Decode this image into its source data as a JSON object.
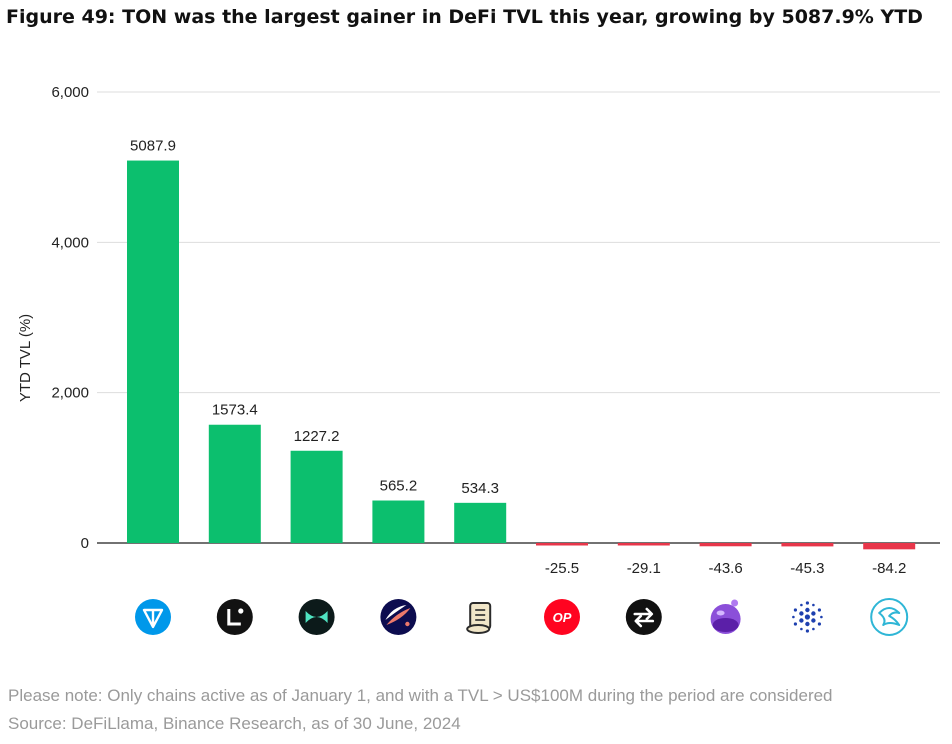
{
  "figure_title": "Figure 49: TON was the largest gainer in DeFi TVL this year, growing by 5087.9% YTD",
  "notes": {
    "line1": "Please note: Only chains active as of January 1, and with a TVL > US$100M during the period are considered",
    "line2": "Source: DeFiLlama, Binance Research, as of 30 June, 2024"
  },
  "chart_data": {
    "type": "bar",
    "title": "",
    "xlabel": "",
    "ylabel": "YTD TVL (%)",
    "ylim": [
      -200,
      6000
    ],
    "yticks": [
      0,
      2000,
      4000,
      6000
    ],
    "ytick_labels": [
      "0",
      "2,000",
      "4,000",
      "6,000"
    ],
    "grid": true,
    "legend": "none",
    "categories": [
      "ton-icon",
      "linea-icon",
      "mode-icon",
      "starknet-icon",
      "scroll-icon",
      "optimism-icon",
      "swap-arrows-icon",
      "purple-orb-icon",
      "cardano-icon",
      "bird-icon"
    ],
    "values": [
      5087.9,
      1573.4,
      1227.2,
      565.2,
      534.3,
      -25.5,
      -29.1,
      -43.6,
      -45.3,
      -84.2
    ],
    "value_labels": [
      "5087.9",
      "1573.4",
      "1227.2",
      "565.2",
      "534.3",
      "-25.5",
      "-29.1",
      "-43.6",
      "-45.3",
      "-84.2"
    ],
    "colors": {
      "positive": "#0cbf6e",
      "negative": "#e8364a",
      "grid": "#dddddd",
      "axis": "#444444"
    },
    "icon_texts": {
      "optimism-icon": "OP"
    }
  }
}
